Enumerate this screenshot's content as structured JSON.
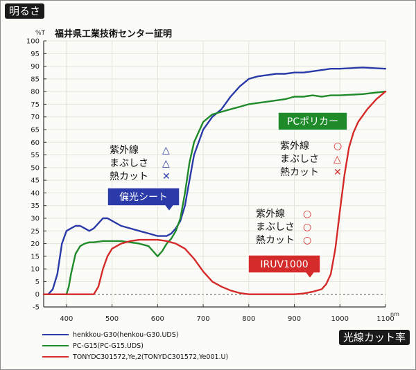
{
  "chart_data": {
    "type": "line",
    "title": "明るさ",
    "source_label": "福井県工業技術センター証明",
    "ylabel": "%T",
    "xlabel": "光線カット率",
    "x_unit": "nm",
    "xlim": [
      350,
      1100
    ],
    "ylim": [
      -5,
      100
    ],
    "x_ticks": [
      400,
      500,
      600,
      700,
      800,
      900,
      1000,
      1100
    ],
    "y_ticks": [
      100,
      95,
      90,
      85,
      80,
      75,
      70,
      65,
      60,
      55,
      50,
      45,
      40,
      35,
      30,
      25,
      20,
      15,
      10,
      5,
      0,
      -5
    ],
    "series": [
      {
        "name": "henkkou-G30(henkou-G30.UDS)",
        "color": "#2a3aa8",
        "x": [
          350,
          360,
          370,
          380,
          390,
          400,
          410,
          420,
          430,
          440,
          450,
          460,
          470,
          480,
          490,
          500,
          520,
          540,
          560,
          580,
          600,
          620,
          630,
          640,
          650,
          660,
          670,
          680,
          700,
          720,
          740,
          760,
          780,
          800,
          820,
          840,
          860,
          880,
          900,
          920,
          940,
          960,
          980,
          1000,
          1050,
          1100
        ],
        "y": [
          0,
          0,
          2,
          8,
          20,
          25,
          26,
          27,
          27,
          26,
          25,
          26,
          28,
          30,
          30,
          29,
          27,
          26,
          25,
          24,
          23,
          23,
          24,
          26,
          29,
          35,
          45,
          55,
          65,
          70,
          73,
          78,
          82,
          85,
          86,
          86.5,
          87,
          87,
          87.5,
          87.5,
          88,
          88.5,
          89,
          89,
          89.5,
          89
        ]
      },
      {
        "name": "PC-G15(PC-G15.UDS)",
        "color": "#1f8a2a",
        "x": [
          350,
          390,
          400,
          405,
          410,
          420,
          430,
          440,
          450,
          460,
          480,
          500,
          520,
          540,
          560,
          580,
          590,
          600,
          610,
          620,
          630,
          640,
          650,
          660,
          670,
          680,
          700,
          720,
          740,
          760,
          780,
          800,
          820,
          840,
          860,
          880,
          900,
          920,
          940,
          960,
          980,
          1000,
          1050,
          1100
        ],
        "y": [
          0,
          0,
          0,
          3,
          8,
          16,
          19,
          20,
          20.5,
          20.5,
          21,
          21,
          21,
          20.5,
          20,
          19,
          17,
          15,
          17,
          20,
          22,
          25,
          30,
          40,
          52,
          60,
          68,
          71,
          72,
          73,
          74,
          75,
          75.5,
          76,
          76.5,
          77,
          78,
          78,
          78.5,
          78,
          78.5,
          78.5,
          79,
          80
        ]
      },
      {
        "name": "TONYDC301572,Ye,2(TONYDC301572,Ye001.U)",
        "color": "#d42a2a",
        "x": [
          350,
          440,
          450,
          460,
          470,
          480,
          490,
          500,
          520,
          540,
          560,
          580,
          600,
          620,
          640,
          660,
          680,
          700,
          720,
          740,
          760,
          780,
          800,
          820,
          840,
          860,
          880,
          900,
          920,
          940,
          960,
          970,
          980,
          990,
          1000,
          1010,
          1020,
          1030,
          1040,
          1060,
          1080,
          1100
        ],
        "y": [
          0,
          0,
          0,
          0,
          3,
          10,
          15,
          18,
          20,
          21,
          21.5,
          21.5,
          21.5,
          21,
          20,
          18,
          14,
          9,
          5,
          3,
          1.5,
          0.5,
          0,
          0,
          0,
          0,
          0,
          0,
          0.3,
          1,
          2,
          4,
          8,
          18,
          33,
          47,
          58,
          64,
          68,
          73,
          77,
          80
        ]
      }
    ]
  },
  "annotations": {
    "henkou": {
      "label": "偏光シート",
      "rows": [
        {
          "text": "紫外線",
          "mark": "△"
        },
        {
          "text": "まぶしさ",
          "mark": "△"
        },
        {
          "text": "熱カット",
          "mark": "✕"
        }
      ]
    },
    "pc": {
      "label": "PCポリカー",
      "rows": [
        {
          "text": "紫外線",
          "mark": "○"
        },
        {
          "text": "まぶしさ",
          "mark": "△"
        },
        {
          "text": "熱カット",
          "mark": "✕"
        }
      ]
    },
    "iruv": {
      "label": "IRUV1000",
      "rows": [
        {
          "text": "紫外線",
          "mark": "○"
        },
        {
          "text": "まぶしさ",
          "mark": "○"
        },
        {
          "text": "熱カット",
          "mark": "○"
        }
      ]
    }
  }
}
